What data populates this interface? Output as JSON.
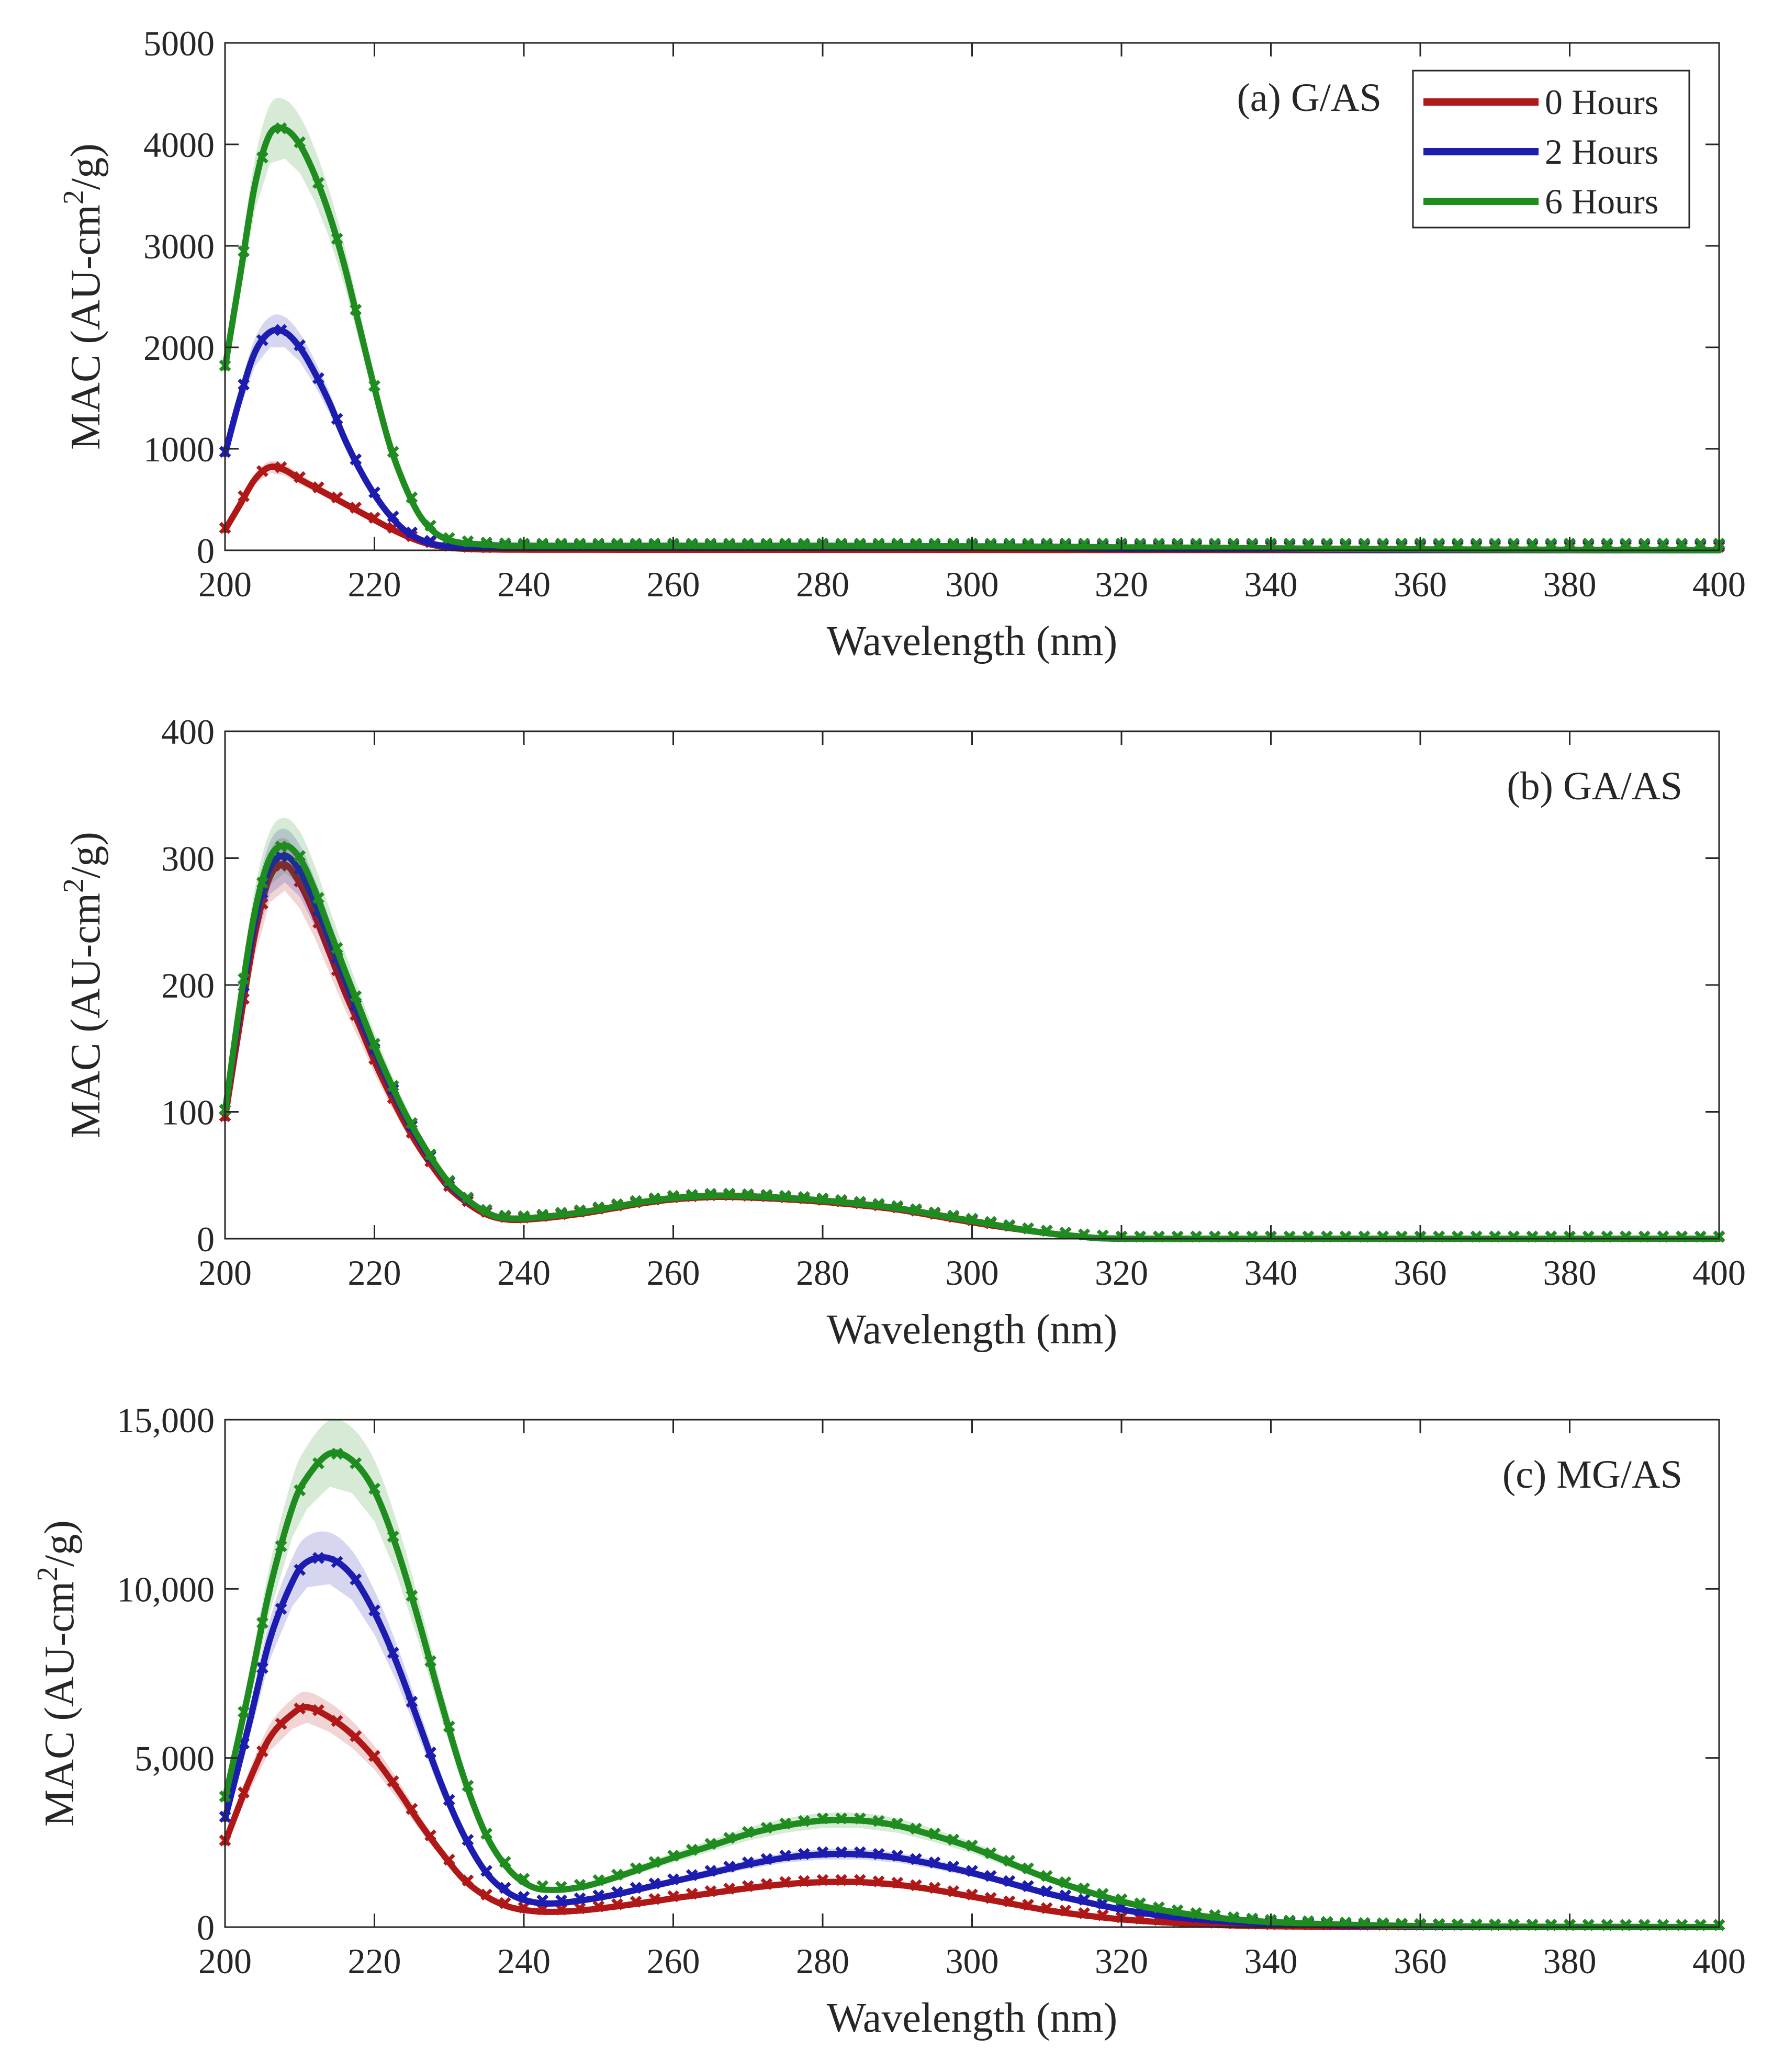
{
  "series_meta": [
    {
      "name": "0 Hours",
      "color": "#b01818"
    },
    {
      "name": "2 Hours",
      "color": "#1c1cb0"
    },
    {
      "name": "6 Hours",
      "color": "#1e8c1e"
    }
  ],
  "chart_data": [
    {
      "type": "line",
      "title": "(a) G/AS",
      "xlabel": "Wavelength (nm)",
      "ylabel": "MAC (AU-cm²/g)",
      "xlim": [
        200,
        400
      ],
      "ylim": [
        0,
        5000
      ],
      "xticks": [
        "200",
        "220",
        "240",
        "260",
        "280",
        "300",
        "320",
        "340",
        "360",
        "380",
        "400"
      ],
      "yticks": [
        "0",
        "1000",
        "2000",
        "3000",
        "4000",
        "5000"
      ],
      "legend": {
        "position": "top-right",
        "entries": [
          "0 Hours",
          "2 Hours",
          "6 Hours"
        ]
      },
      "series": [
        {
          "name": "0 Hours",
          "x": [
            200,
            202,
            204,
            206,
            208,
            210,
            212,
            214,
            216,
            218,
            220,
            222,
            224,
            226,
            228,
            230,
            232,
            234,
            236,
            240,
            260,
            280,
            300,
            320,
            340,
            360,
            380,
            400
          ],
          "values": [
            200,
            450,
            700,
            820,
            790,
            700,
            620,
            540,
            460,
            380,
            300,
            220,
            150,
            90,
            50,
            25,
            15,
            10,
            8,
            6,
            5,
            5,
            4,
            3,
            2,
            1,
            1,
            0
          ]
        },
        {
          "name": "2 Hours",
          "x": [
            200,
            202,
            204,
            206,
            208,
            210,
            212,
            214,
            216,
            218,
            220,
            222,
            224,
            226,
            228,
            230,
            232,
            234,
            236,
            240,
            260,
            280,
            300,
            320,
            340,
            360,
            380,
            400
          ],
          "values": [
            950,
            1500,
            1950,
            2150,
            2150,
            2000,
            1750,
            1450,
            1100,
            800,
            550,
            350,
            200,
            110,
            60,
            40,
            30,
            30,
            30,
            30,
            30,
            30,
            25,
            15,
            10,
            5,
            3,
            0
          ]
        },
        {
          "name": "6 Hours",
          "x": [
            200,
            202,
            204,
            206,
            208,
            210,
            212,
            214,
            216,
            218,
            220,
            222,
            224,
            226,
            228,
            230,
            232,
            234,
            236,
            240,
            260,
            280,
            300,
            320,
            340,
            360,
            380,
            400
          ],
          "values": [
            1800,
            2700,
            3600,
            4100,
            4150,
            4000,
            3700,
            3300,
            2800,
            2200,
            1600,
            1050,
            650,
            350,
            180,
            100,
            70,
            60,
            50,
            45,
            45,
            45,
            40,
            30,
            20,
            10,
            5,
            0
          ]
        }
      ]
    },
    {
      "type": "line",
      "title": "(b) GA/AS",
      "xlabel": "Wavelength (nm)",
      "ylabel": "MAC (AU-cm²/g)",
      "xlim": [
        200,
        400
      ],
      "ylim": [
        0,
        400
      ],
      "xticks": [
        "200",
        "220",
        "240",
        "260",
        "280",
        "300",
        "320",
        "340",
        "360",
        "380",
        "400"
      ],
      "yticks": [
        "0",
        "100",
        "200",
        "300",
        "400"
      ],
      "series": [
        {
          "name": "0 Hours",
          "x": [
            200,
            202,
            204,
            206,
            208,
            210,
            212,
            214,
            216,
            218,
            220,
            222,
            224,
            226,
            228,
            230,
            232,
            234,
            236,
            238,
            240,
            244,
            248,
            252,
            256,
            260,
            266,
            272,
            278,
            284,
            290,
            296,
            302,
            308,
            314,
            320,
            340,
            360,
            380,
            400
          ],
          "values": [
            95,
            170,
            240,
            285,
            295,
            280,
            255,
            225,
            195,
            168,
            140,
            115,
            92,
            72,
            55,
            40,
            30,
            22,
            17,
            15,
            15,
            17,
            20,
            24,
            28,
            31,
            33,
            32,
            30,
            27,
            23,
            17,
            11,
            6,
            2,
            0,
            0,
            0,
            0,
            0
          ]
        },
        {
          "name": "2 Hours",
          "x": [
            200,
            202,
            204,
            206,
            208,
            210,
            212,
            214,
            216,
            218,
            220,
            222,
            224,
            226,
            228,
            230,
            232,
            234,
            236,
            238,
            240,
            244,
            248,
            252,
            256,
            260,
            266,
            272,
            278,
            284,
            290,
            296,
            302,
            308,
            314,
            320,
            340,
            360,
            380,
            400
          ],
          "values": [
            100,
            180,
            250,
            292,
            302,
            290,
            265,
            235,
            205,
            175,
            148,
            122,
            98,
            77,
            59,
            43,
            32,
            24,
            18,
            16,
            16,
            18,
            21,
            25,
            29,
            32,
            34,
            33,
            31,
            28,
            24,
            18,
            12,
            6,
            2,
            0,
            0,
            0,
            0,
            0
          ]
        },
        {
          "name": "6 Hours",
          "x": [
            200,
            202,
            204,
            206,
            208,
            210,
            212,
            214,
            216,
            218,
            220,
            222,
            224,
            226,
            228,
            230,
            232,
            234,
            236,
            238,
            240,
            244,
            248,
            252,
            256,
            260,
            266,
            272,
            278,
            284,
            290,
            296,
            302,
            308,
            314,
            320,
            340,
            360,
            380,
            400
          ],
          "values": [
            100,
            185,
            258,
            300,
            310,
            300,
            275,
            243,
            212,
            182,
            152,
            125,
            100,
            79,
            60,
            44,
            33,
            24,
            18,
            16,
            16,
            18,
            21,
            25,
            29,
            32,
            34,
            33,
            31,
            28,
            24,
            18,
            12,
            6,
            2,
            0,
            0,
            0,
            0,
            0
          ]
        }
      ]
    },
    {
      "type": "line",
      "title": "(c) MG/AS",
      "xlabel": "Wavelength (nm)",
      "ylabel": "MAC (AU-cm²/g)",
      "xlim": [
        200,
        400
      ],
      "ylim": [
        0,
        15000
      ],
      "xticks": [
        "200",
        "220",
        "240",
        "260",
        "280",
        "300",
        "320",
        "340",
        "360",
        "380",
        "400"
      ],
      "yticks": [
        "0",
        "5,000",
        "10,000",
        "15,000"
      ],
      "series": [
        {
          "name": "0 Hours",
          "x": [
            200,
            203,
            206,
            209,
            211,
            214,
            217,
            220,
            223,
            226,
            229,
            232,
            235,
            238,
            241,
            244,
            248,
            252,
            256,
            260,
            265,
            270,
            275,
            280,
            285,
            290,
            295,
            300,
            305,
            310,
            315,
            320,
            325,
            330,
            335,
            340,
            350,
            360,
            370,
            380,
            390,
            400
          ],
          "values": [
            2500,
            4200,
            5600,
            6300,
            6500,
            6200,
            5700,
            5000,
            4100,
            3100,
            2200,
            1400,
            900,
            600,
            480,
            450,
            500,
            600,
            720,
            850,
            1000,
            1150,
            1270,
            1330,
            1330,
            1250,
            1100,
            900,
            700,
            500,
            350,
            230,
            150,
            90,
            50,
            25,
            10,
            5,
            2,
            0,
            0,
            0
          ]
        },
        {
          "name": "2 Hours",
          "x": [
            200,
            203,
            206,
            209,
            211,
            214,
            217,
            220,
            223,
            226,
            229,
            232,
            235,
            238,
            241,
            244,
            248,
            252,
            256,
            260,
            265,
            270,
            275,
            280,
            285,
            290,
            295,
            300,
            305,
            310,
            315,
            320,
            325,
            330,
            335,
            340,
            350,
            360,
            370,
            380,
            390,
            400
          ],
          "values": [
            3200,
            5800,
            8500,
            10200,
            10800,
            10900,
            10400,
            9300,
            7800,
            6000,
            4200,
            2700,
            1600,
            1000,
            750,
            700,
            800,
            950,
            1150,
            1350,
            1600,
            1850,
            2050,
            2150,
            2150,
            2050,
            1850,
            1600,
            1300,
            1000,
            750,
            520,
            350,
            230,
            150,
            100,
            45,
            20,
            10,
            5,
            2,
            0
          ]
        },
        {
          "name": "6 Hours",
          "x": [
            200,
            203,
            206,
            209,
            211,
            214,
            217,
            220,
            223,
            226,
            229,
            232,
            235,
            238,
            241,
            244,
            248,
            252,
            256,
            260,
            265,
            270,
            275,
            280,
            285,
            290,
            295,
            300,
            305,
            310,
            315,
            320,
            325,
            330,
            335,
            340,
            350,
            360,
            370,
            380,
            390,
            400
          ],
          "values": [
            3800,
            6800,
            10000,
            12400,
            13300,
            14000,
            13800,
            12900,
            11200,
            9000,
            6600,
            4400,
            2700,
            1700,
            1200,
            1100,
            1200,
            1450,
            1750,
            2050,
            2400,
            2750,
            3000,
            3150,
            3150,
            3000,
            2700,
            2350,
            1900,
            1450,
            1080,
            760,
            520,
            350,
            230,
            150,
            70,
            30,
            15,
            8,
            3,
            0
          ]
        }
      ]
    }
  ]
}
